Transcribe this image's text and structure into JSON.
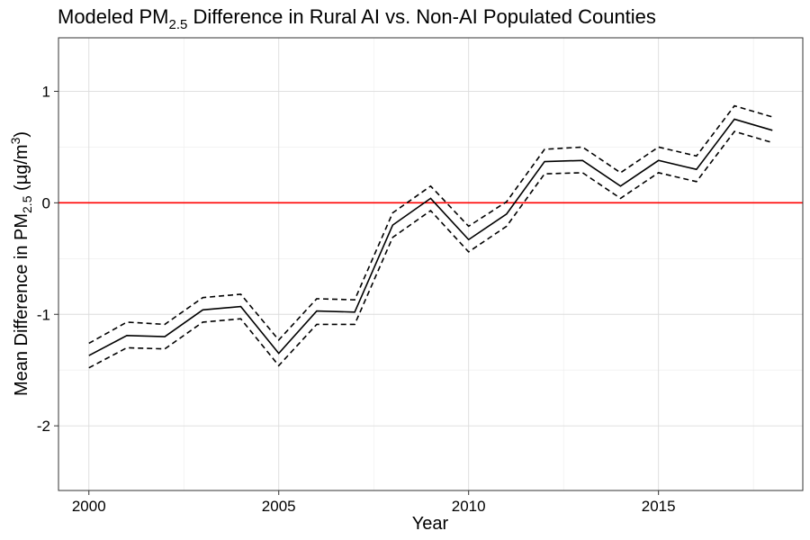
{
  "chart_data": {
    "type": "line",
    "title": {
      "prefix": "Modeled PM",
      "subscript": "2.5",
      "suffix": " Difference in Rural AI vs. Non-AI Populated Counties"
    },
    "xlabel": "Year",
    "ylabel": {
      "prefix": "Mean Difference in PM",
      "subscript": "2.5",
      "middle": " (µg/m",
      "superscript": "3",
      "suffix": ")"
    },
    "xlim": [
      1999.2,
      2018.8
    ],
    "ylim": [
      -2.58,
      1.48
    ],
    "x_ticks": [
      2000,
      2005,
      2010,
      2015
    ],
    "x_tick_labels": [
      "2000",
      "2005",
      "2010",
      "2015"
    ],
    "y_ticks": [
      1,
      0,
      -1,
      -2
    ],
    "y_tick_labels": [
      "1",
      "0",
      "-1",
      "-2"
    ],
    "x_minor_ticks": [
      2002.5,
      2007.5,
      2012.5,
      2017.5
    ],
    "y_minor_ticks": [
      0.5,
      -0.5,
      -1.5
    ],
    "grid": true,
    "reference_line": {
      "y": 0,
      "color": "#ff0000"
    },
    "x": [
      2000,
      2001,
      2002,
      2003,
      2004,
      2005,
      2006,
      2007,
      2008,
      2009,
      2010,
      2011,
      2012,
      2013,
      2014,
      2015,
      2016,
      2017,
      2018
    ],
    "series": [
      {
        "role": "estimate",
        "style": "solid",
        "color": "#000000",
        "values": [
          -1.37,
          -1.19,
          -1.2,
          -0.96,
          -0.93,
          -1.35,
          -0.97,
          -0.98,
          -0.2,
          0.04,
          -0.33,
          -0.1,
          0.37,
          0.38,
          0.15,
          0.38,
          0.3,
          0.75,
          0.65
        ]
      },
      {
        "role": "upper",
        "style": "dashed",
        "color": "#000000",
        "values": [
          -1.26,
          -1.07,
          -1.09,
          -0.85,
          -0.82,
          -1.23,
          -0.86,
          -0.87,
          -0.09,
          0.15,
          -0.21,
          0.01,
          0.48,
          0.5,
          0.27,
          0.5,
          0.42,
          0.87,
          0.77
        ]
      },
      {
        "role": "lower",
        "style": "dashed",
        "color": "#000000",
        "values": [
          -1.48,
          -1.3,
          -1.31,
          -1.07,
          -1.04,
          -1.46,
          -1.09,
          -1.09,
          -0.31,
          -0.07,
          -0.44,
          -0.21,
          0.26,
          0.27,
          0.04,
          0.27,
          0.19,
          0.64,
          0.54
        ]
      }
    ]
  }
}
